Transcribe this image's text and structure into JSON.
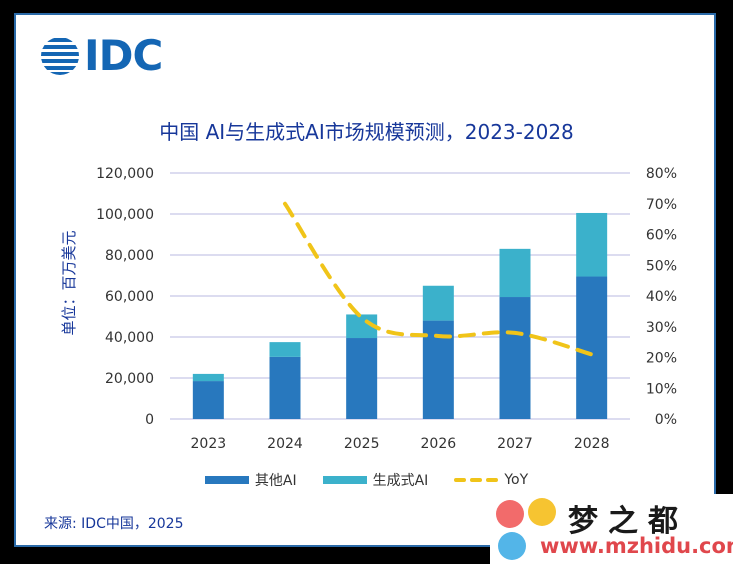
{
  "brand": {
    "logo_text": "IDC"
  },
  "chart_data": {
    "type": "bar",
    "title": "中国 AI与生成式AI市场规模预测，2023-2028",
    "ylabel": "单位：百万美元",
    "categories": [
      "2023",
      "2024",
      "2025",
      "2026",
      "2027",
      "2028"
    ],
    "series": [
      {
        "name": "其他AI",
        "type": "bar",
        "stacked": true,
        "color": "#2878be",
        "values": [
          18500,
          30300,
          39500,
          48000,
          59500,
          69500
        ]
      },
      {
        "name": "生成式AI",
        "type": "bar",
        "stacked": true,
        "color": "#3bb1cb",
        "values": [
          3500,
          7200,
          11500,
          17000,
          23500,
          31000
        ]
      },
      {
        "name": "YoY",
        "type": "line",
        "axis": "right",
        "dashed": true,
        "color": "#f0c419",
        "values": [
          null,
          0.7,
          0.33,
          0.27,
          0.28,
          0.21
        ]
      }
    ],
    "yticks": [
      "0",
      "20,000",
      "40,000",
      "60,000",
      "80,000",
      "100,000",
      "120,000"
    ],
    "y2ticks": [
      "0%",
      "10%",
      "20%",
      "30%",
      "40%",
      "50%",
      "60%",
      "70%",
      "80%"
    ],
    "ylim": [
      0,
      120000
    ],
    "y2lim": [
      0,
      0.8
    ],
    "grid": true,
    "legend_position": "bottom"
  },
  "source": "来源: IDC中国，2025",
  "watermark": {
    "title": "梦之都",
    "url": "www.mzhidu.com"
  }
}
